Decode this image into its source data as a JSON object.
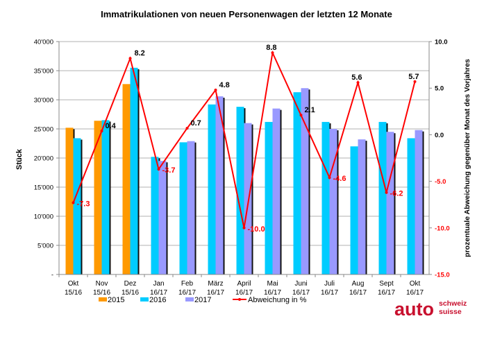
{
  "chart_data": {
    "type": "bar",
    "title": "Immatrikulationen von neuen Personenwagen der letzten 12 Monate",
    "ylabel": "Stück",
    "y2label": "prozentuale Abweichung gegenüber Monat des Vorjahres",
    "ylim": [
      0,
      40000
    ],
    "y2lim": [
      -15,
      10
    ],
    "yticks": [
      "-",
      "5'000",
      "10'000",
      "15'000",
      "20'000",
      "25'000",
      "30'000",
      "35'000",
      "40'000"
    ],
    "y2ticks": [
      "-15.0",
      "-10.0",
      "-5.0",
      "0.0",
      "5.0",
      "10.0"
    ],
    "grid": true,
    "legend_position": "bottom",
    "categories": [
      [
        "Okt",
        "15/16"
      ],
      [
        "Nov",
        "15/16"
      ],
      [
        "Dez",
        "15/16"
      ],
      [
        "Jan",
        "16/17"
      ],
      [
        "Feb",
        "16/17"
      ],
      [
        "März",
        "16/17"
      ],
      [
        "April",
        "16/17"
      ],
      [
        "Mai",
        "16/17"
      ],
      [
        "Juni",
        "16/17"
      ],
      [
        "Juli",
        "16/17"
      ],
      [
        "Aug",
        "16/17"
      ],
      [
        "Sept",
        "16/17"
      ],
      [
        "Okt",
        "16/17"
      ]
    ],
    "series": [
      {
        "name": "2015",
        "color": "#ff9900",
        "values": [
          25200,
          26400,
          32700,
          null,
          null,
          null,
          null,
          null,
          null,
          null,
          null,
          null,
          null
        ]
      },
      {
        "name": "2016",
        "color": "#00ccff",
        "values": [
          23400,
          26500,
          35500,
          20200,
          22700,
          29200,
          28800,
          26200,
          31300,
          26200,
          22000,
          26200,
          23400
        ]
      },
      {
        "name": "2017",
        "color": "#9999ff",
        "values": [
          null,
          null,
          null,
          19500,
          22900,
          30600,
          26000,
          28500,
          32000,
          25000,
          23200,
          24500,
          24800
        ]
      }
    ],
    "line": {
      "name": "Abweichung in %",
      "color": "#ff0000",
      "axis": "right",
      "values": [
        -7.3,
        0.4,
        8.2,
        -3.7,
        0.7,
        4.8,
        -10.0,
        8.8,
        2.1,
        -4.6,
        5.6,
        -6.2,
        5.7
      ],
      "labels": [
        "-7.3",
        "0.4",
        "8.2",
        "-3.7",
        "0.7",
        "4.8",
        "-10.0",
        "8.8",
        "2.1",
        "-4.6",
        "5.6",
        "-6.2",
        "5.7"
      ]
    }
  },
  "logo": {
    "main": "auto",
    "line1": "schweiz",
    "line2": "suisse",
    "color": "#c8102e"
  }
}
